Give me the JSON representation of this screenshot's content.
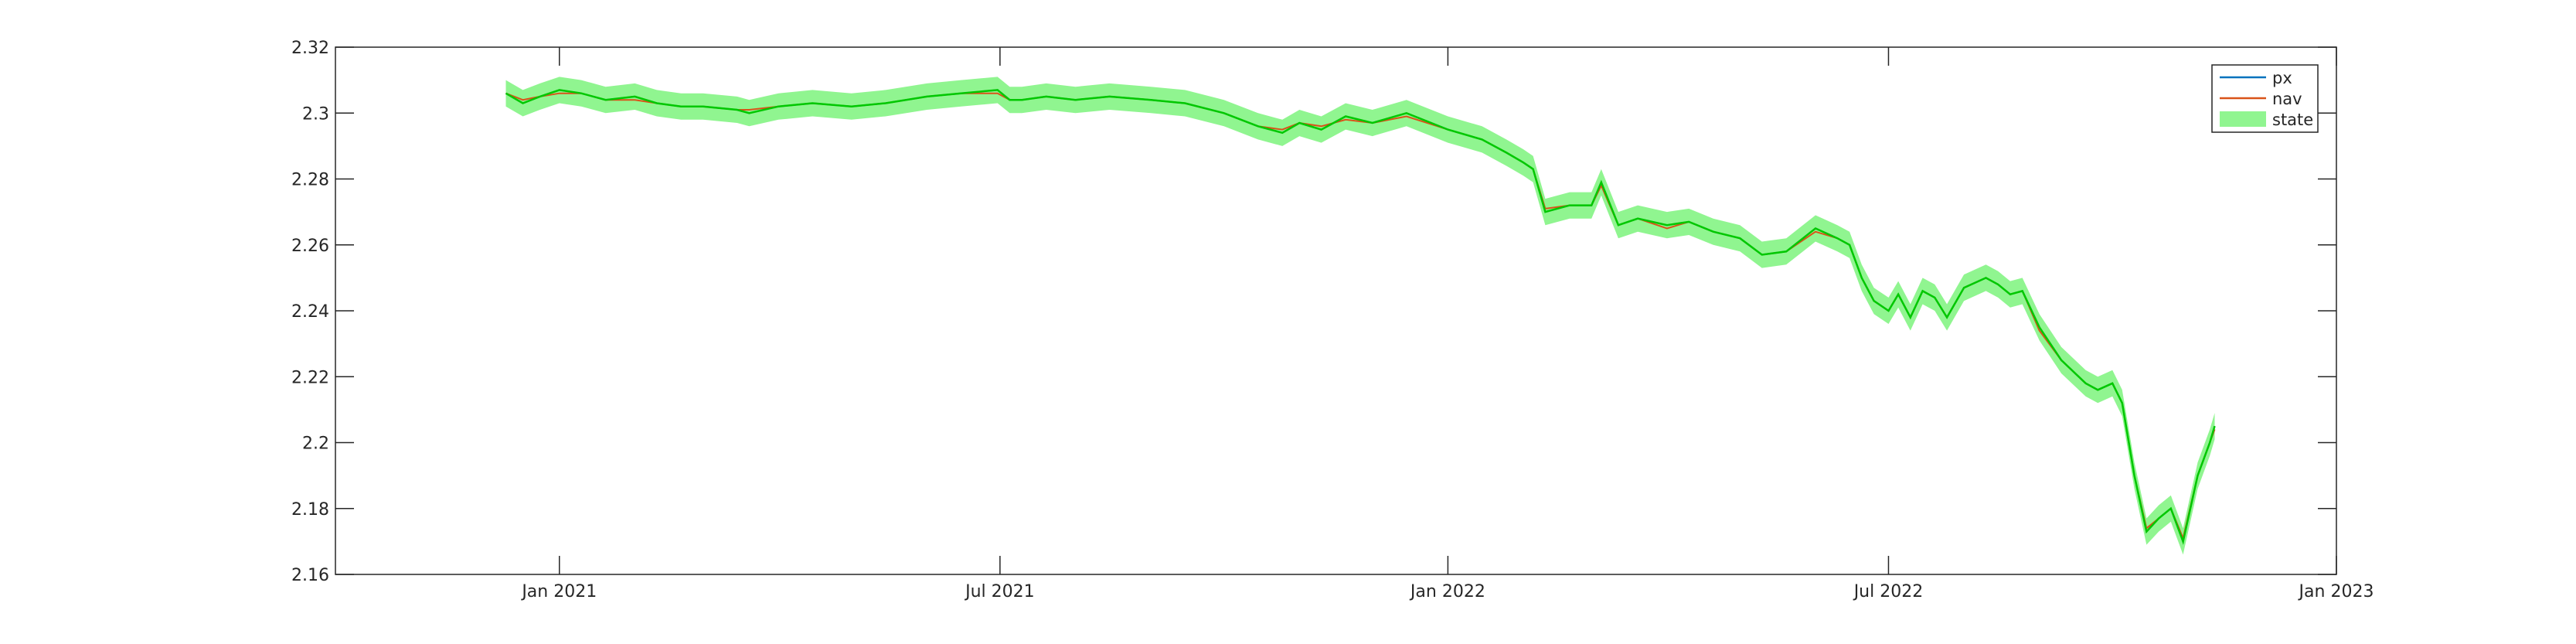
{
  "chart_data": {
    "type": "line",
    "title": "",
    "xlabel": "",
    "ylabel": "",
    "x_axis": {
      "type": "date",
      "range": [
        "2020-10-01",
        "2023-01-01"
      ],
      "ticks": [
        {
          "date": "2021-01-01",
          "label": "Jan 2021"
        },
        {
          "date": "2021-07-01",
          "label": "Jul 2021"
        },
        {
          "date": "2022-01-01",
          "label": "Jan 2022"
        },
        {
          "date": "2022-07-01",
          "label": "Jul 2022"
        },
        {
          "date": "2023-01-01",
          "label": "Jan 2023"
        }
      ]
    },
    "y_axis": {
      "range": [
        2.16,
        2.32
      ],
      "ticks": [
        2.16,
        2.18,
        2.2,
        2.22,
        2.24,
        2.26,
        2.28,
        2.3,
        2.32
      ],
      "tick_labels": [
        "2.16",
        "2.18",
        "2.2",
        "2.22",
        "2.24",
        "2.26",
        "2.28",
        "2.3",
        "2.32"
      ]
    },
    "grid": false,
    "legend": {
      "position": "top-right",
      "entries": [
        "px",
        "nav",
        "state"
      ]
    },
    "colors": {
      "px": "#0072BD",
      "nav": "#D95319",
      "state_band": "#90F590",
      "state_line": "#00C800",
      "axes": "#262626"
    },
    "series": [
      {
        "name": "px",
        "x": [
          "2020-12-10",
          "2020-12-17",
          "2020-12-24",
          "2021-01-01",
          "2021-01-10",
          "2021-01-20",
          "2021-02-01",
          "2021-02-10",
          "2021-02-20",
          "2021-03-01",
          "2021-03-15",
          "2021-03-20",
          "2021-04-01",
          "2021-04-15",
          "2021-05-01",
          "2021-05-15",
          "2021-06-01",
          "2021-06-15",
          "2021-06-30",
          "2021-07-05",
          "2021-07-10",
          "2021-07-20",
          "2021-08-01",
          "2021-08-15",
          "2021-09-01",
          "2021-09-15",
          "2021-10-01",
          "2021-10-15",
          "2021-10-25",
          "2021-11-01",
          "2021-11-10",
          "2021-11-20",
          "2021-12-01",
          "2021-12-15",
          "2022-01-01",
          "2022-01-15",
          "2022-01-25",
          "2022-02-01",
          "2022-02-05",
          "2022-02-10",
          "2022-02-20",
          "2022-03-01",
          "2022-03-05",
          "2022-03-12",
          "2022-03-20",
          "2022-04-01",
          "2022-04-10",
          "2022-04-20",
          "2022-05-01",
          "2022-05-10",
          "2022-05-20",
          "2022-06-01",
          "2022-06-10",
          "2022-06-15",
          "2022-06-20",
          "2022-06-25",
          "2022-07-01",
          "2022-07-05",
          "2022-07-10",
          "2022-07-15",
          "2022-07-20",
          "2022-07-25",
          "2022-08-01",
          "2022-08-10",
          "2022-08-15",
          "2022-08-20",
          "2022-08-25",
          "2022-09-01",
          "2022-09-10",
          "2022-09-20",
          "2022-09-25",
          "2022-10-01",
          "2022-10-05",
          "2022-10-10",
          "2022-10-15",
          "2022-10-20",
          "2022-10-25",
          "2022-10-30",
          "2022-11-05",
          "2022-11-10",
          "2022-11-12"
        ],
        "values": [
          2.306,
          2.303,
          2.305,
          2.307,
          2.306,
          2.304,
          2.305,
          2.303,
          2.302,
          2.302,
          2.301,
          2.3,
          2.302,
          2.303,
          2.302,
          2.303,
          2.305,
          2.306,
          2.307,
          2.304,
          2.304,
          2.305,
          2.304,
          2.305,
          2.304,
          2.303,
          2.3,
          2.296,
          2.294,
          2.297,
          2.295,
          2.299,
          2.297,
          2.3,
          2.295,
          2.292,
          2.288,
          2.285,
          2.283,
          2.27,
          2.272,
          2.272,
          2.279,
          2.266,
          2.268,
          2.266,
          2.267,
          2.264,
          2.262,
          2.257,
          2.258,
          2.265,
          2.262,
          2.26,
          2.25,
          2.243,
          2.24,
          2.245,
          2.238,
          2.246,
          2.244,
          2.238,
          2.247,
          2.25,
          2.248,
          2.245,
          2.246,
          2.235,
          2.225,
          2.218,
          2.216,
          2.218,
          2.212,
          2.19,
          2.173,
          2.177,
          2.18,
          2.17,
          2.19,
          2.2,
          2.205
        ]
      },
      {
        "name": "nav",
        "x": [
          "2020-12-10",
          "2020-12-17",
          "2020-12-24",
          "2021-01-01",
          "2021-01-10",
          "2021-01-20",
          "2021-02-01",
          "2021-02-10",
          "2021-02-20",
          "2021-03-01",
          "2021-03-15",
          "2021-03-20",
          "2021-04-01",
          "2021-04-15",
          "2021-05-01",
          "2021-05-15",
          "2021-06-01",
          "2021-06-15",
          "2021-06-30",
          "2021-07-05",
          "2021-07-10",
          "2021-07-20",
          "2021-08-01",
          "2021-08-15",
          "2021-09-01",
          "2021-09-15",
          "2021-10-01",
          "2021-10-15",
          "2021-10-25",
          "2021-11-01",
          "2021-11-10",
          "2021-11-20",
          "2021-12-01",
          "2021-12-15",
          "2022-01-01",
          "2022-01-15",
          "2022-01-25",
          "2022-02-01",
          "2022-02-05",
          "2022-02-10",
          "2022-02-20",
          "2022-03-01",
          "2022-03-05",
          "2022-03-12",
          "2022-03-20",
          "2022-04-01",
          "2022-04-10",
          "2022-04-20",
          "2022-05-01",
          "2022-05-10",
          "2022-05-20",
          "2022-06-01",
          "2022-06-10",
          "2022-06-15",
          "2022-06-20",
          "2022-06-25",
          "2022-07-01",
          "2022-07-05",
          "2022-07-10",
          "2022-07-15",
          "2022-07-20",
          "2022-07-25",
          "2022-08-01",
          "2022-08-10",
          "2022-08-15",
          "2022-08-20",
          "2022-08-25",
          "2022-09-01",
          "2022-09-10",
          "2022-09-20",
          "2022-09-25",
          "2022-10-01",
          "2022-10-05",
          "2022-10-10",
          "2022-10-15",
          "2022-10-20",
          "2022-10-25",
          "2022-10-30",
          "2022-11-05",
          "2022-11-10",
          "2022-11-12"
        ],
        "values": [
          2.306,
          2.304,
          2.305,
          2.306,
          2.306,
          2.304,
          2.304,
          2.303,
          2.302,
          2.302,
          2.301,
          2.301,
          2.302,
          2.303,
          2.302,
          2.303,
          2.305,
          2.306,
          2.306,
          2.304,
          2.304,
          2.305,
          2.304,
          2.305,
          2.304,
          2.303,
          2.3,
          2.296,
          2.295,
          2.297,
          2.296,
          2.298,
          2.297,
          2.299,
          2.295,
          2.292,
          2.288,
          2.285,
          2.283,
          2.271,
          2.272,
          2.272,
          2.278,
          2.266,
          2.268,
          2.265,
          2.267,
          2.264,
          2.262,
          2.257,
          2.258,
          2.264,
          2.262,
          2.26,
          2.25,
          2.243,
          2.24,
          2.245,
          2.238,
          2.246,
          2.244,
          2.238,
          2.247,
          2.25,
          2.248,
          2.245,
          2.246,
          2.234,
          2.225,
          2.218,
          2.216,
          2.218,
          2.212,
          2.19,
          2.174,
          2.177,
          2.18,
          2.171,
          2.19,
          2.2,
          2.204
        ]
      },
      {
        "name": "state",
        "x": [
          "2020-12-10",
          "2020-12-17",
          "2020-12-24",
          "2021-01-01",
          "2021-01-10",
          "2021-01-20",
          "2021-02-01",
          "2021-02-10",
          "2021-02-20",
          "2021-03-01",
          "2021-03-15",
          "2021-03-20",
          "2021-04-01",
          "2021-04-15",
          "2021-05-01",
          "2021-05-15",
          "2021-06-01",
          "2021-06-15",
          "2021-06-30",
          "2021-07-05",
          "2021-07-10",
          "2021-07-20",
          "2021-08-01",
          "2021-08-15",
          "2021-09-01",
          "2021-09-15",
          "2021-10-01",
          "2021-10-15",
          "2021-10-25",
          "2021-11-01",
          "2021-11-10",
          "2021-11-20",
          "2021-12-01",
          "2021-12-15",
          "2022-01-01",
          "2022-01-15",
          "2022-01-25",
          "2022-02-01",
          "2022-02-05",
          "2022-02-10",
          "2022-02-20",
          "2022-03-01",
          "2022-03-05",
          "2022-03-12",
          "2022-03-20",
          "2022-04-01",
          "2022-04-10",
          "2022-04-20",
          "2022-05-01",
          "2022-05-10",
          "2022-05-20",
          "2022-06-01",
          "2022-06-10",
          "2022-06-15",
          "2022-06-20",
          "2022-06-25",
          "2022-07-01",
          "2022-07-05",
          "2022-07-10",
          "2022-07-15",
          "2022-07-20",
          "2022-07-25",
          "2022-08-01",
          "2022-08-10",
          "2022-08-15",
          "2022-08-20",
          "2022-08-25",
          "2022-09-01",
          "2022-09-10",
          "2022-09-20",
          "2022-09-25",
          "2022-10-01",
          "2022-10-05",
          "2022-10-10",
          "2022-10-15",
          "2022-10-20",
          "2022-10-25",
          "2022-10-30",
          "2022-11-05",
          "2022-11-10",
          "2022-11-12"
        ],
        "values": [
          2.306,
          2.303,
          2.305,
          2.307,
          2.306,
          2.304,
          2.305,
          2.303,
          2.302,
          2.302,
          2.301,
          2.3,
          2.302,
          2.303,
          2.302,
          2.303,
          2.305,
          2.306,
          2.307,
          2.304,
          2.304,
          2.305,
          2.304,
          2.305,
          2.304,
          2.303,
          2.3,
          2.296,
          2.294,
          2.297,
          2.295,
          2.299,
          2.297,
          2.3,
          2.295,
          2.292,
          2.288,
          2.285,
          2.283,
          2.27,
          2.272,
          2.272,
          2.279,
          2.266,
          2.268,
          2.266,
          2.267,
          2.264,
          2.262,
          2.257,
          2.258,
          2.265,
          2.262,
          2.26,
          2.25,
          2.243,
          2.24,
          2.245,
          2.238,
          2.246,
          2.244,
          2.238,
          2.247,
          2.25,
          2.248,
          2.245,
          2.246,
          2.235,
          2.225,
          2.218,
          2.216,
          2.218,
          2.212,
          2.19,
          2.173,
          2.177,
          2.18,
          2.17,
          2.19,
          2.2,
          2.205
        ],
        "band_halfwidth": 0.004
      }
    ]
  }
}
